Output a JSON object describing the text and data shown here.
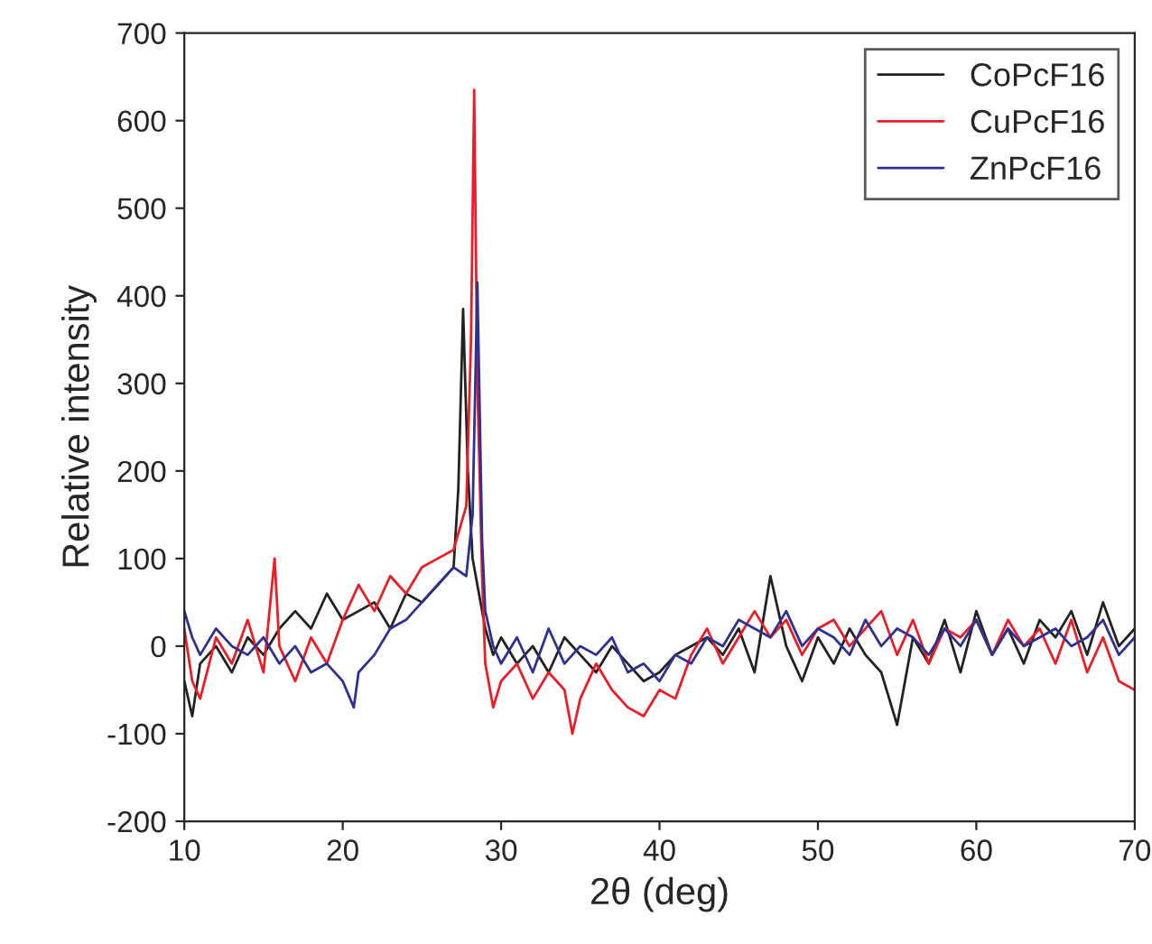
{
  "chart_data": {
    "type": "line",
    "xlabel": "2θ (deg)",
    "ylabel": "Relative intensity",
    "xlim": [
      10,
      70
    ],
    "xticks": [
      10,
      20,
      30,
      40,
      50,
      60,
      70
    ],
    "ylim": [
      -200,
      700
    ],
    "yticks": [
      -200,
      -100,
      0,
      100,
      200,
      300,
      400,
      500,
      600,
      700
    ],
    "grid": false,
    "legend": "top right",
    "marker": "none",
    "line_style": "solid",
    "series": [
      {
        "name": "CoPcF16",
        "color": "#222222",
        "x": [
          10,
          10.5,
          11,
          12,
          13,
          14,
          15,
          16,
          17,
          18,
          19,
          20,
          21,
          22,
          23,
          24,
          25,
          26,
          27,
          27.3,
          27.6,
          27.9,
          28.2,
          28.6,
          29,
          29.5,
          30,
          31,
          32,
          33,
          34,
          35,
          36,
          37,
          38,
          39,
          40,
          41,
          42,
          43,
          44,
          45,
          46,
          47,
          48,
          49,
          50,
          51,
          52,
          53,
          54,
          55,
          56,
          57,
          58,
          59,
          60,
          61,
          62,
          63,
          64,
          65,
          66,
          67,
          68,
          69,
          70
        ],
        "values": [
          -40,
          -80,
          -20,
          0,
          -30,
          10,
          -10,
          20,
          40,
          20,
          60,
          30,
          40,
          50,
          20,
          60,
          50,
          70,
          90,
          180,
          385,
          200,
          100,
          60,
          20,
          -10,
          10,
          -20,
          0,
          -30,
          10,
          -10,
          -30,
          0,
          -20,
          -40,
          -30,
          -10,
          0,
          10,
          -10,
          20,
          -30,
          80,
          0,
          -40,
          10,
          -20,
          20,
          -10,
          -30,
          -90,
          10,
          -20,
          30,
          -30,
          40,
          -10,
          20,
          -20,
          30,
          10,
          40,
          -10,
          50,
          0,
          20
        ]
      },
      {
        "name": "CuPcF16",
        "color": "#ee1c25",
        "x": [
          10,
          10.5,
          11,
          12,
          13,
          14,
          15,
          15.7,
          16,
          17,
          18,
          19,
          20,
          21,
          22,
          23,
          24,
          25,
          26,
          27,
          27.8,
          28.1,
          28.3,
          28.5,
          28.8,
          29,
          29.5,
          30,
          31,
          32,
          33,
          34,
          34.5,
          35,
          36,
          37,
          38,
          39,
          40,
          41,
          42,
          43,
          44,
          45,
          46,
          47,
          48,
          49,
          50,
          51,
          52,
          53,
          54,
          55,
          56,
          57,
          58,
          59,
          60,
          61,
          62,
          63,
          64,
          65,
          66,
          67,
          68,
          69,
          70
        ],
        "values": [
          20,
          -40,
          -60,
          10,
          -20,
          30,
          -30,
          100,
          0,
          -40,
          10,
          -20,
          30,
          70,
          40,
          80,
          60,
          90,
          100,
          110,
          160,
          350,
          635,
          300,
          80,
          -20,
          -70,
          -40,
          -20,
          -60,
          -30,
          -50,
          -100,
          -60,
          -20,
          -50,
          -70,
          -80,
          -50,
          -60,
          -10,
          20,
          -20,
          10,
          40,
          10,
          30,
          -10,
          20,
          30,
          0,
          20,
          40,
          -10,
          30,
          -20,
          20,
          10,
          30,
          -10,
          30,
          0,
          20,
          -20,
          30,
          -30,
          10,
          -40,
          -50
        ]
      },
      {
        "name": "ZnPcF16",
        "color": "#2e3192",
        "x": [
          10,
          10.5,
          11,
          12,
          13,
          14,
          15,
          16,
          17,
          18,
          19,
          20,
          20.7,
          21,
          22,
          23,
          24,
          25,
          26,
          27,
          27.8,
          28.2,
          28.5,
          28.8,
          29,
          29.5,
          30,
          31,
          32,
          33,
          34,
          35,
          36,
          37,
          38,
          39,
          40,
          41,
          42,
          43,
          44,
          45,
          46,
          47,
          48,
          49,
          50,
          51,
          52,
          53,
          54,
          55,
          56,
          57,
          58,
          59,
          60,
          61,
          62,
          63,
          64,
          65,
          66,
          67,
          68,
          69,
          70
        ],
        "values": [
          40,
          10,
          -10,
          20,
          0,
          -10,
          10,
          -20,
          0,
          -30,
          -20,
          -40,
          -70,
          -30,
          -10,
          20,
          30,
          50,
          70,
          90,
          80,
          150,
          415,
          120,
          40,
          0,
          -20,
          10,
          -30,
          20,
          -20,
          0,
          -10,
          10,
          -30,
          -20,
          -40,
          -10,
          -20,
          10,
          0,
          30,
          20,
          10,
          40,
          0,
          20,
          10,
          -10,
          30,
          0,
          20,
          10,
          -10,
          20,
          0,
          30,
          -10,
          20,
          0,
          10,
          20,
          0,
          10,
          30,
          -10,
          10
        ]
      }
    ]
  }
}
